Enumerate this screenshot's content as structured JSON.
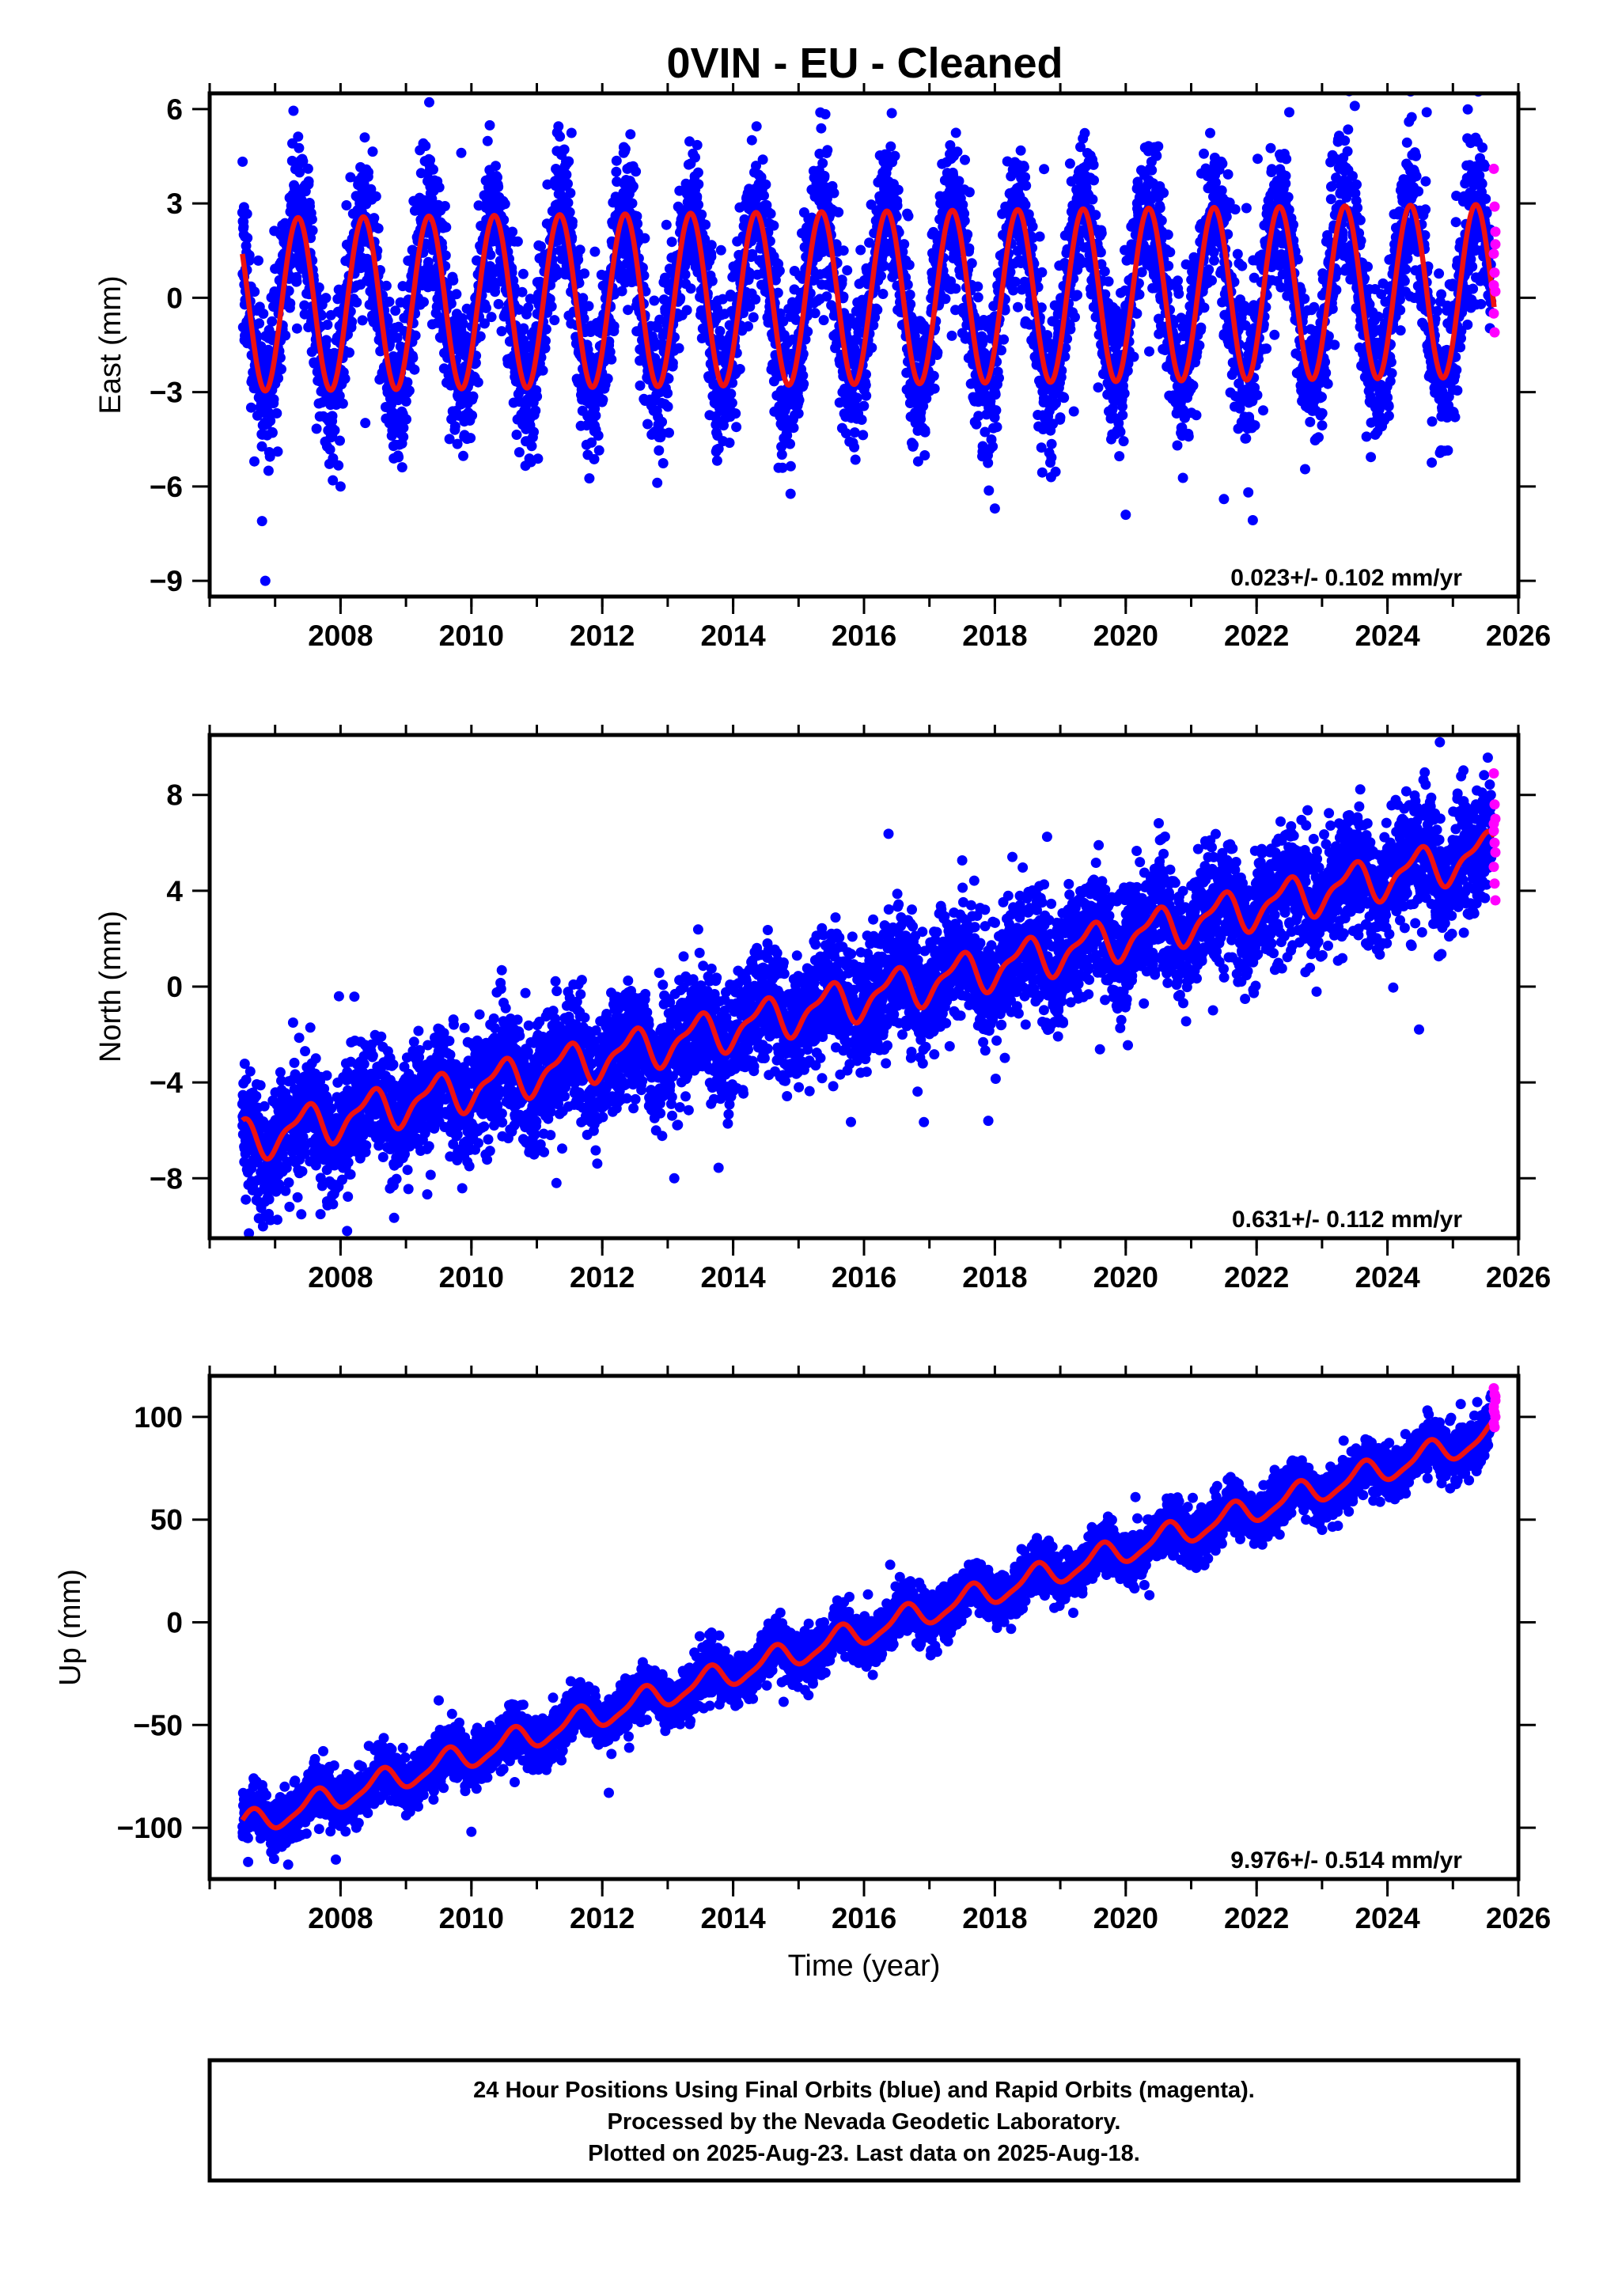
{
  "title": "0VIN  - EU - Cleaned",
  "colors": {
    "final": "#0000ff",
    "rapid": "#ff00ff",
    "model": "#ee1111",
    "frame": "#000000"
  },
  "chart_data": [
    {
      "type": "scatter",
      "component": "east",
      "ylabel": "East (mm)",
      "xlabel": "",
      "xlim": [
        2006.0,
        2026.0
      ],
      "ylim": [
        -9.5,
        6.5
      ],
      "xticks": [
        2008,
        2010,
        2012,
        2014,
        2016,
        2018,
        2020,
        2022,
        2024,
        2026
      ],
      "yticks": [
        6,
        3,
        0,
        -3,
        -6,
        -9
      ],
      "ytick_labels": [
        "6",
        "3",
        "0",
        "−3",
        "−6",
        "−9"
      ],
      "rate_text": "0.023+/- 0.102 mm/yr",
      "model": {
        "start_year": 2006.5,
        "end_year": 2025.63,
        "offset": 0.0,
        "rate": 0.023,
        "annual_amplitude": 2.75,
        "annual_peak": 0.35,
        "semiannual_amplitude": 0.0,
        "semiannual_peak": 0.0
      },
      "scatter_sd": 1.2,
      "rapid_values": [
        4.1,
        2.9,
        2.1,
        1.4,
        0.8,
        0.2,
        -0.5,
        -1.1,
        1.7,
        0.4
      ],
      "outliers": [
        [
          2006.8,
          -7.1
        ],
        [
          2006.85,
          -9.0
        ],
        [
          2006.9,
          -5.5
        ],
        [
          2008.0,
          -6.0
        ],
        [
          2018.0,
          -6.7
        ],
        [
          2020.0,
          -6.9
        ],
        [
          2021.5,
          -6.4
        ],
        [
          2022.5,
          5.9
        ],
        [
          2023.5,
          6.1
        ],
        [
          2024.6,
          5.9
        ]
      ],
      "series": [
        {
          "name": "Final Orbits (blue)",
          "color": "#0000ff"
        },
        {
          "name": "Rapid Orbits (magenta)",
          "color": "#ff00ff"
        },
        {
          "name": "model",
          "color": "#ee1111"
        }
      ]
    },
    {
      "type": "scatter",
      "component": "north",
      "ylabel": "North (mm)",
      "xlabel": "",
      "xlim": [
        2006.0,
        2026.0
      ],
      "ylim": [
        -10.5,
        10.5
      ],
      "xticks": [
        2008,
        2010,
        2012,
        2014,
        2016,
        2018,
        2020,
        2022,
        2024,
        2026
      ],
      "yticks": [
        8,
        4,
        0,
        -4,
        -8
      ],
      "ytick_labels": [
        "8",
        "4",
        "0",
        "−4",
        "−8"
      ],
      "rate_text": "0.631+/- 0.112 mm/yr",
      "model": {
        "start_year": 2006.5,
        "end_year": 2025.63,
        "offset": -0.4,
        "rate": 0.631,
        "annual_amplitude": 0.8,
        "annual_peak": 0.45,
        "semiannual_amplitude": 0.3,
        "semiannual_peak": 0.1
      },
      "scatter_sd": 1.25,
      "rapid_values": [
        8.9,
        7.6,
        7.0,
        6.5,
        6.0,
        5.6,
        5.0,
        4.3,
        3.6,
        6.8
      ],
      "outliers": [
        [
          2024.8,
          10.2
        ],
        [
          2008.1,
          -10.2
        ],
        [
          2011.3,
          -8.2
        ],
        [
          2013.1,
          -8.0
        ],
        [
          2017.9,
          -5.6
        ],
        [
          2006.6,
          -10.3
        ]
      ],
      "series": [
        {
          "name": "Final Orbits (blue)",
          "color": "#0000ff"
        },
        {
          "name": "Rapid Orbits (magenta)",
          "color": "#ff00ff"
        },
        {
          "name": "model",
          "color": "#ee1111"
        }
      ]
    },
    {
      "type": "scatter",
      "component": "up",
      "ylabel": "Up (mm)",
      "xlabel": "Time (year)",
      "xlim": [
        2006.0,
        2026.0
      ],
      "ylim": [
        -125.0,
        120.0
      ],
      "xticks": [
        2008,
        2010,
        2012,
        2014,
        2016,
        2018,
        2020,
        2022,
        2024,
        2026
      ],
      "yticks": [
        100,
        50,
        0,
        -50,
        -100
      ],
      "ytick_labels": [
        "100",
        "50",
        "0",
        "−50",
        "−100"
      ],
      "rate_text": "9.976+/- 0.514 mm/yr",
      "model": {
        "start_year": 2006.5,
        "end_year": 2025.63,
        "offset": -4.0,
        "rate": 9.976,
        "annual_amplitude": 6.0,
        "annual_peak": 0.62,
        "semiannual_amplitude": 1.5,
        "semiannual_peak": 0.2
      },
      "scatter_sd": 6.0,
      "rapid_values": [
        114,
        111,
        108,
        105,
        102,
        100,
        97,
        95,
        110,
        103
      ],
      "outliers": [
        [
          2007.2,
          -118
        ],
        [
          2010.0,
          -102
        ],
        [
          2012.1,
          -83
        ],
        [
          2009.5,
          -38
        ],
        [
          2016.4,
          28
        ]
      ],
      "series": [
        {
          "name": "Final Orbits (blue)",
          "color": "#0000ff"
        },
        {
          "name": "Rapid Orbits (magenta)",
          "color": "#ff00ff"
        },
        {
          "name": "model",
          "color": "#ee1111"
        }
      ]
    }
  ],
  "footer": {
    "line1": "24 Hour Positions Using Final Orbits (blue) and Rapid Orbits (magenta).",
    "line2": "Processed by the Nevada Geodetic Laboratory.",
    "line3": "Plotted on 2025-Aug-23. Last data on 2025-Aug-18."
  }
}
